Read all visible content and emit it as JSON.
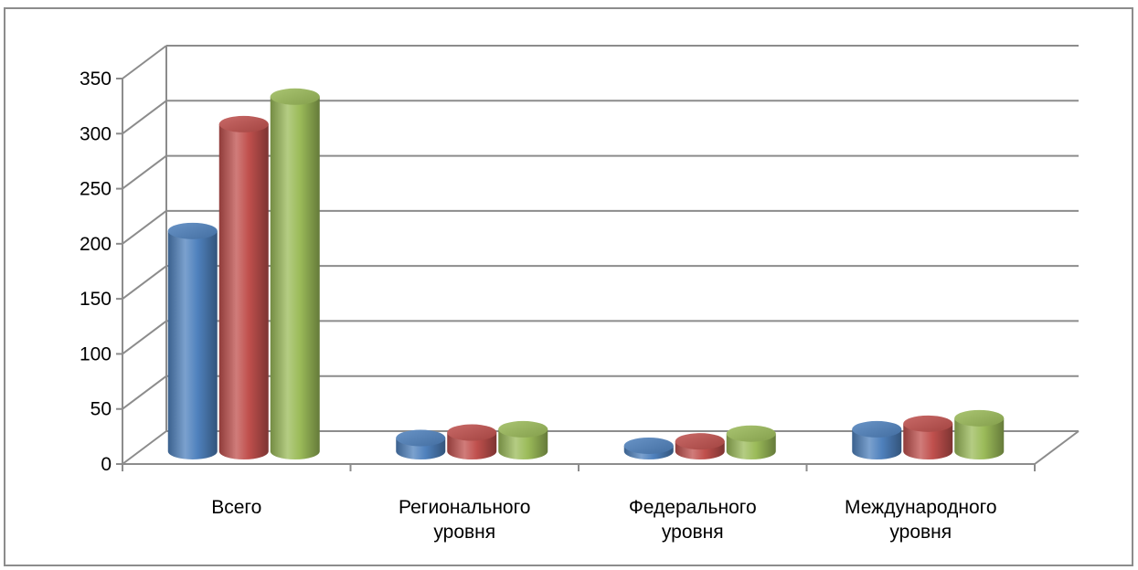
{
  "chart_data": {
    "type": "bar",
    "categories": [
      [
        "Всего"
      ],
      [
        "Регионального",
        "уровня"
      ],
      [
        "Федерального",
        "уровня"
      ],
      [
        "Международного",
        "уровня"
      ]
    ],
    "series": [
      {
        "values": [
          200,
          12,
          5,
          20
        ],
        "color": "#4f81bd"
      },
      {
        "values": [
          297,
          17,
          9,
          25
        ],
        "color": "#c0504d"
      },
      {
        "values": [
          322,
          20,
          16,
          30
        ],
        "color": "#9bbb59"
      }
    ],
    "ylim": [
      0,
      350
    ],
    "yticks": [
      0,
      50,
      100,
      150,
      200,
      250,
      300,
      350
    ],
    "grid": true,
    "legend": "none"
  }
}
